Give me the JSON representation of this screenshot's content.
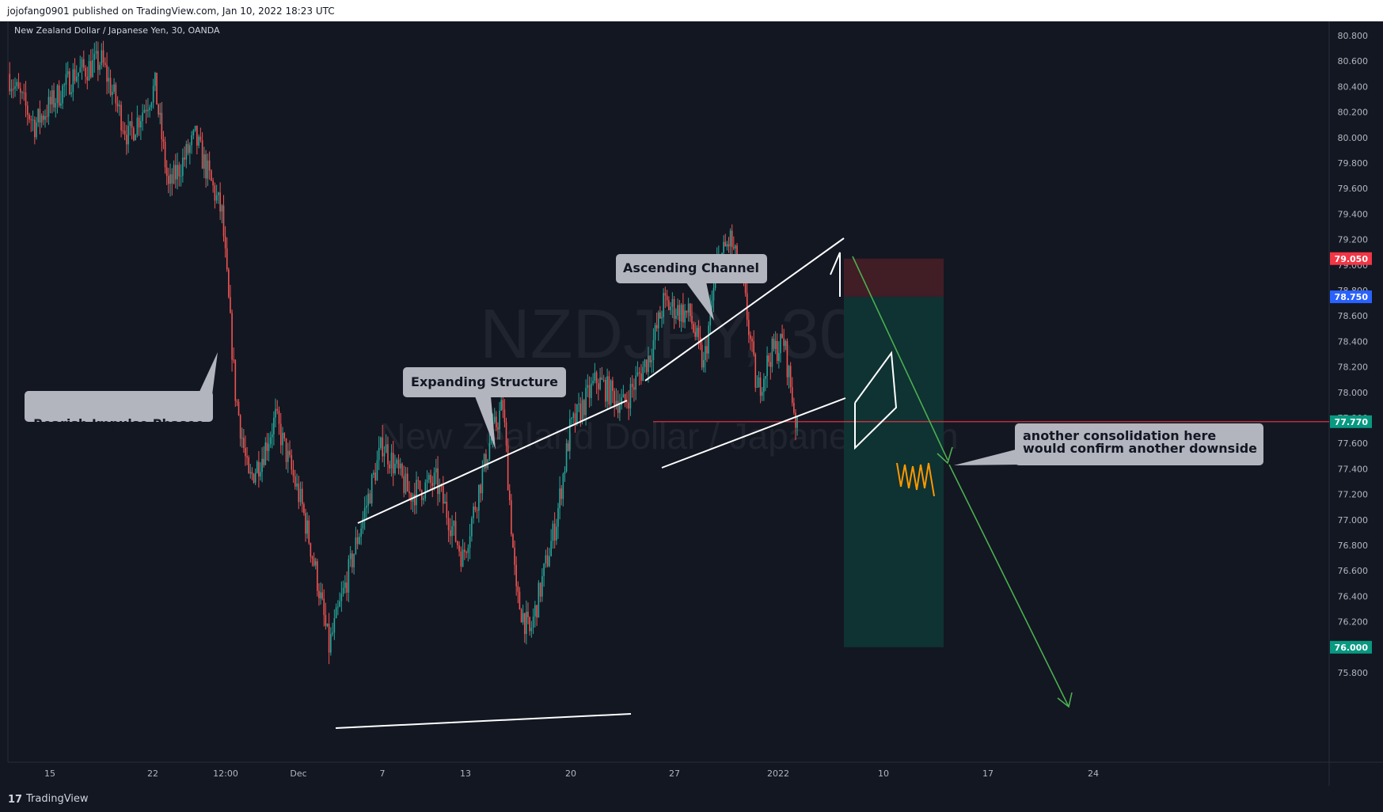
{
  "header": {
    "published_text": "jojofang0901 published on TradingView.com, Jan 10, 2022 18:23 UTC"
  },
  "symbol_line": "New Zealand Dollar / Japanese Yen, 30, OANDA",
  "watermark": {
    "symbol": "NZDJPY, 30",
    "name": "New Zealand Dollar / Japanese Yen"
  },
  "footer": {
    "logo": "17",
    "brand": "TradingView"
  },
  "colors": {
    "background": "#131722",
    "up": "#26a69a",
    "down": "#ef5350",
    "annotation_lines": "#ffffff",
    "arrow": "#4caf50",
    "orange_path": "#ff9800",
    "horizontal_line": "#f23645",
    "stop_zone": "#4a1f26",
    "target_zone": "#0f3434",
    "label_box": "#b2b5be"
  },
  "chart_data": {
    "type": "candlestick",
    "symbol": "NZDJPY",
    "timeframe": "30",
    "exchange": "OANDA",
    "ylim": [
      75.7,
      80.9
    ],
    "y_ticks": [
      "80.800",
      "80.600",
      "80.400",
      "80.200",
      "80.000",
      "79.800",
      "79.600",
      "79.400",
      "79.200",
      "79.000",
      "78.800",
      "78.600",
      "78.400",
      "78.200",
      "78.000",
      "77.800",
      "77.600",
      "77.400",
      "77.200",
      "77.000",
      "76.800",
      "76.600",
      "76.400",
      "76.200",
      "76.000",
      "75.800"
    ],
    "x_ticks": [
      "15",
      "22",
      "12:00",
      "Dec",
      "7",
      "13",
      "20",
      "27",
      "2022",
      "10",
      "17",
      "24"
    ],
    "price_tags": [
      {
        "value": "79.050",
        "color": "#f23645"
      },
      {
        "value": "78.750",
        "color": "#2962ff"
      },
      {
        "value": "77.770",
        "color": "#089981"
      },
      {
        "value": "76.000",
        "color": "#089981"
      }
    ],
    "price_path_approx": [
      {
        "date": "2021-11-12",
        "price": 80.5
      },
      {
        "date": "2021-11-14",
        "price": 80.1
      },
      {
        "date": "2021-11-17",
        "price": 80.5
      },
      {
        "date": "2021-11-19",
        "price": 80.6
      },
      {
        "date": "2021-11-21",
        "price": 80.0
      },
      {
        "date": "2021-11-23",
        "price": 80.4
      },
      {
        "date": "2021-11-24",
        "price": 79.6
      },
      {
        "date": "2021-11-26",
        "price": 80.0
      },
      {
        "date": "2021-11-28",
        "price": 79.4
      },
      {
        "date": "2021-11-29",
        "price": 78.0
      },
      {
        "date": "2021-11-30",
        "price": 77.3
      },
      {
        "date": "2021-12-01",
        "price": 77.5
      },
      {
        "date": "2021-12-02",
        "price": 77.8
      },
      {
        "date": "2021-12-04",
        "price": 77.1
      },
      {
        "date": "2021-12-05",
        "price": 76.6
      },
      {
        "date": "2021-12-06",
        "price": 76.0
      },
      {
        "date": "2021-12-08",
        "price": 76.8
      },
      {
        "date": "2021-12-10",
        "price": 77.6
      },
      {
        "date": "2021-12-12",
        "price": 77.2
      },
      {
        "date": "2021-12-14",
        "price": 77.3
      },
      {
        "date": "2021-12-16",
        "price": 76.7
      },
      {
        "date": "2021-12-18",
        "price": 77.6
      },
      {
        "date": "2021-12-19",
        "price": 77.9
      },
      {
        "date": "2021-12-20",
        "price": 76.4
      },
      {
        "date": "2021-12-21",
        "price": 76.1
      },
      {
        "date": "2021-12-23",
        "price": 77.0
      },
      {
        "date": "2021-12-24",
        "price": 77.7
      },
      {
        "date": "2021-12-26",
        "price": 78.1
      },
      {
        "date": "2021-12-28",
        "price": 77.9
      },
      {
        "date": "2021-12-30",
        "price": 78.3
      },
      {
        "date": "2021-12-31",
        "price": 78.7
      },
      {
        "date": "2022-01-02",
        "price": 78.6
      },
      {
        "date": "2022-01-03",
        "price": 78.2
      },
      {
        "date": "2022-01-04",
        "price": 79.0
      },
      {
        "date": "2022-01-05",
        "price": 79.2
      },
      {
        "date": "2022-01-06",
        "price": 78.8
      },
      {
        "date": "2022-01-07",
        "price": 78.0
      },
      {
        "date": "2022-01-08",
        "price": 78.3
      },
      {
        "date": "2022-01-09",
        "price": 78.4
      },
      {
        "date": "2022-01-10",
        "price": 77.7
      }
    ],
    "annotations": [
      {
        "type": "callout",
        "text": "Bearish Impulse Phasee"
      },
      {
        "type": "callout",
        "text": "Expanding Structure"
      },
      {
        "type": "callout",
        "text": "Ascending Channel"
      },
      {
        "type": "callout",
        "text": "another consolidation here would confirm another downside"
      }
    ],
    "callout_note_lines": [
      "another consolidation here",
      "would confirm another downside"
    ],
    "position": {
      "side": "short",
      "stop": 79.05,
      "entry": 78.75,
      "target": 76.0
    },
    "horizontal_line": 77.77,
    "grid": false
  }
}
